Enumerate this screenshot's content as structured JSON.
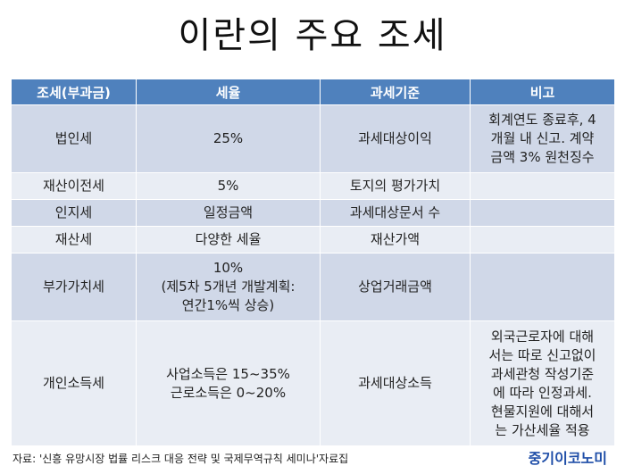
{
  "title": "이란의 주요 조세",
  "table": {
    "headers": [
      "조세(부과금)",
      "세율",
      "과세기준",
      "비고"
    ],
    "rows": [
      {
        "tax": "법인세",
        "rate": "25%",
        "basis": "과세대상이익",
        "note": "회계연도 종료후, 4\n개월 내 신고. 계약\n금액 3% 원천징수"
      },
      {
        "tax": "재산이전세",
        "rate": "5%",
        "basis": "토지의 평가가치",
        "note": ""
      },
      {
        "tax": "인지세",
        "rate": "일정금액",
        "basis": "과세대상문서 수",
        "note": ""
      },
      {
        "tax": "재산세",
        "rate": "다양한 세율",
        "basis": "재산가액",
        "note": ""
      },
      {
        "tax": "부가가치세",
        "rate": "10%\n(제5차 5개년 개발계획:\n연간1%씩 상승)",
        "basis": "상업거래금액",
        "note": ""
      },
      {
        "tax": "개인소득세",
        "rate": "사업소득은 15~35%\n근로소득은 0~20%",
        "basis": "과세대상소득",
        "note": "외국근로자에 대해\n서는 따로 신고없이\n과세관청 작성기준\n에 따라 인정과세.\n현물지원에 대해서\n는 가산세율 적용"
      }
    ]
  },
  "source": "자료: '신흥 유망시장 법률 리스크 대응 전략 및 국제무역규칙 세미나'자료집",
  "logo": "중기이코노미",
  "colors": {
    "header_bg": "#4f81bd",
    "row_odd": "#d0d8e8",
    "row_even": "#e9edf4",
    "logo": "#1f4ea8"
  }
}
